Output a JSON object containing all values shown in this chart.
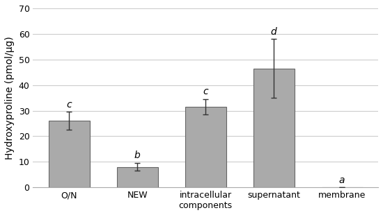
{
  "categories": [
    "O/N",
    "NEW",
    "intracellular\ncomponents",
    "supernatant",
    "membrane"
  ],
  "values": [
    26.0,
    8.0,
    31.5,
    46.5,
    0.0
  ],
  "errors": [
    3.5,
    1.5,
    3.0,
    11.5,
    0.0
  ],
  "letters": [
    "c",
    "b",
    "c",
    "d",
    "a"
  ],
  "bar_color": "#aaaaaa",
  "bar_edgecolor": "#666666",
  "ylabel": "Hydroxyproline (pmol/µg)",
  "ylim": [
    0,
    70
  ],
  "yticks": [
    0,
    10,
    20,
    30,
    40,
    50,
    60,
    70
  ],
  "background_color": "#ffffff",
  "plot_bg_color": "#ffffff",
  "bar_width": 0.6,
  "letter_fontsize": 10,
  "ylabel_fontsize": 10,
  "tick_fontsize": 9,
  "error_capsize": 3,
  "error_linewidth": 1.0,
  "grid_color": "#cccccc",
  "grid_linewidth": 0.8
}
